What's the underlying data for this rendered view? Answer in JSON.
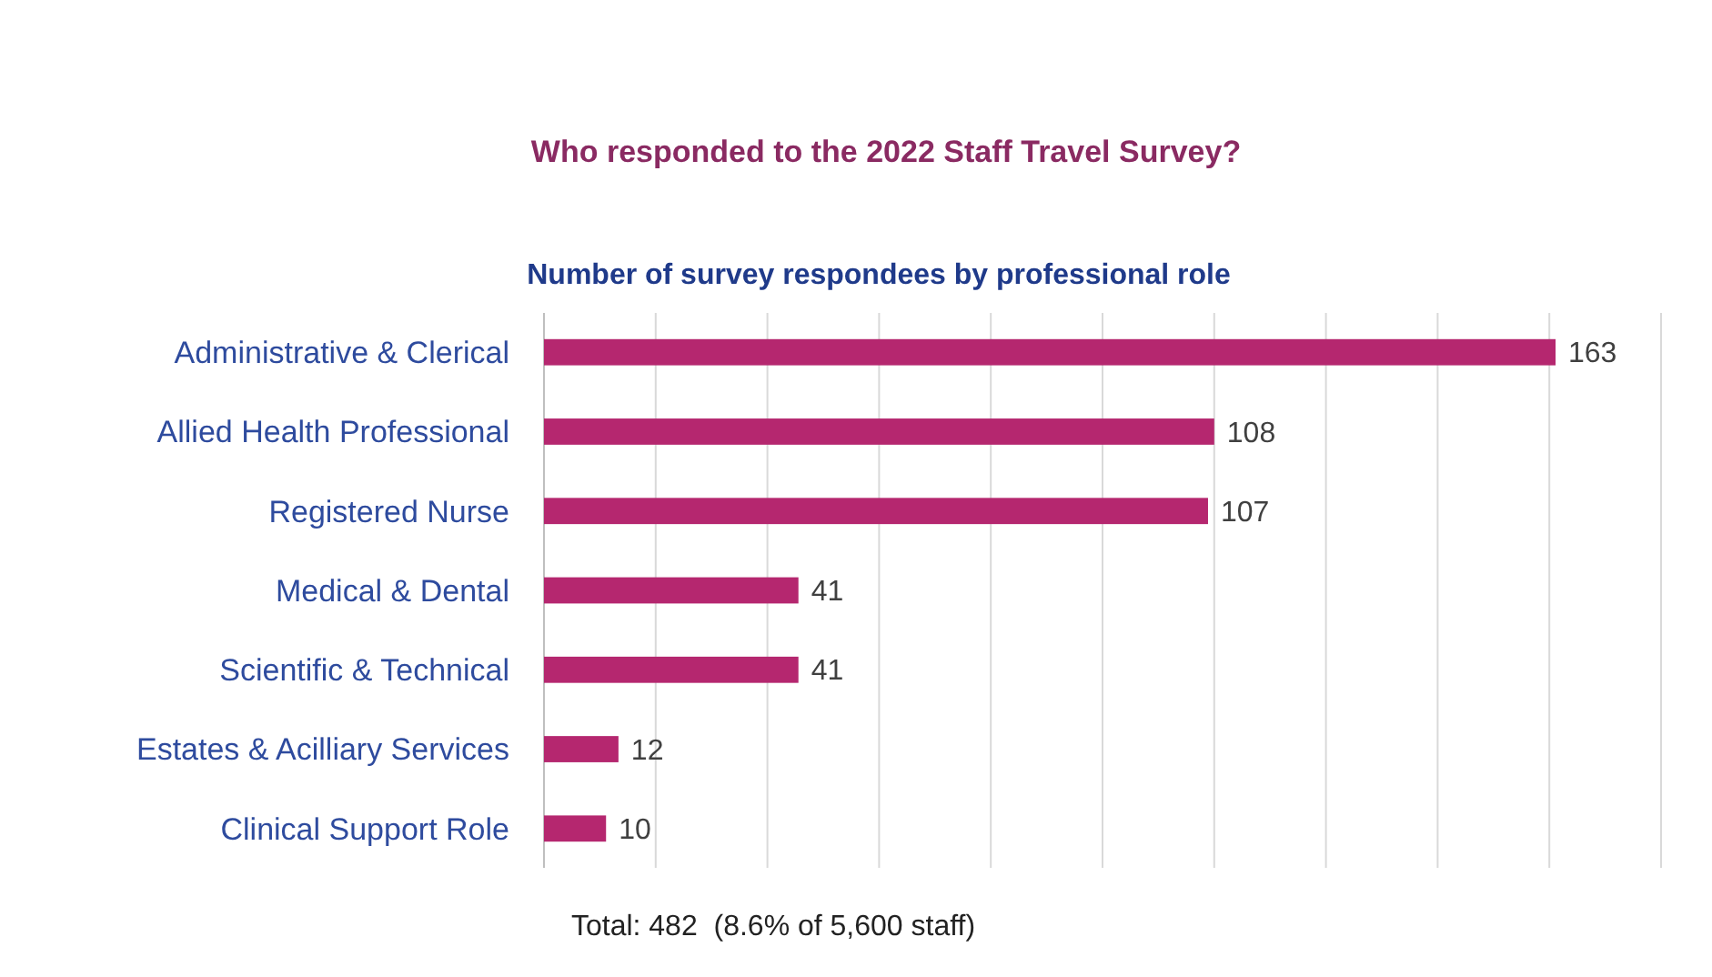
{
  "chart_data": {
    "type": "bar",
    "orientation": "horizontal",
    "title": "Who responded to the 2022 Staff Travel Survey?",
    "subtitle": "Number of survey respondees by professional role",
    "categories": [
      "Administrative & Clerical",
      "Allied Health Professional",
      "Registered Nurse",
      "Medical & Dental",
      "Scientific & Technical",
      "Estates & Acilliary Services",
      "Clinical Support Role"
    ],
    "values": [
      163,
      108,
      107,
      41,
      41,
      12,
      10
    ],
    "color": "#b5276f",
    "xlim": [
      0,
      180
    ],
    "xticks": [
      {
        "value": 0,
        "label": null
      },
      {
        "value": 18,
        "label": null
      },
      {
        "value": 36,
        "label": null
      },
      {
        "value": 54,
        "label": null
      },
      {
        "value": 72,
        "label": null
      },
      {
        "value": 90,
        "label": null
      },
      {
        "value": 108,
        "label": null
      },
      {
        "value": 126,
        "label": null
      },
      {
        "value": 144,
        "label": null
      },
      {
        "value": 162,
        "label": null
      },
      {
        "value": 180,
        "label": null
      }
    ],
    "grid": "x",
    "tick_labels": "y",
    "data_labels": true,
    "annotations": [
      "Total: 482  (8.6% of 5,600 staff)"
    ]
  }
}
